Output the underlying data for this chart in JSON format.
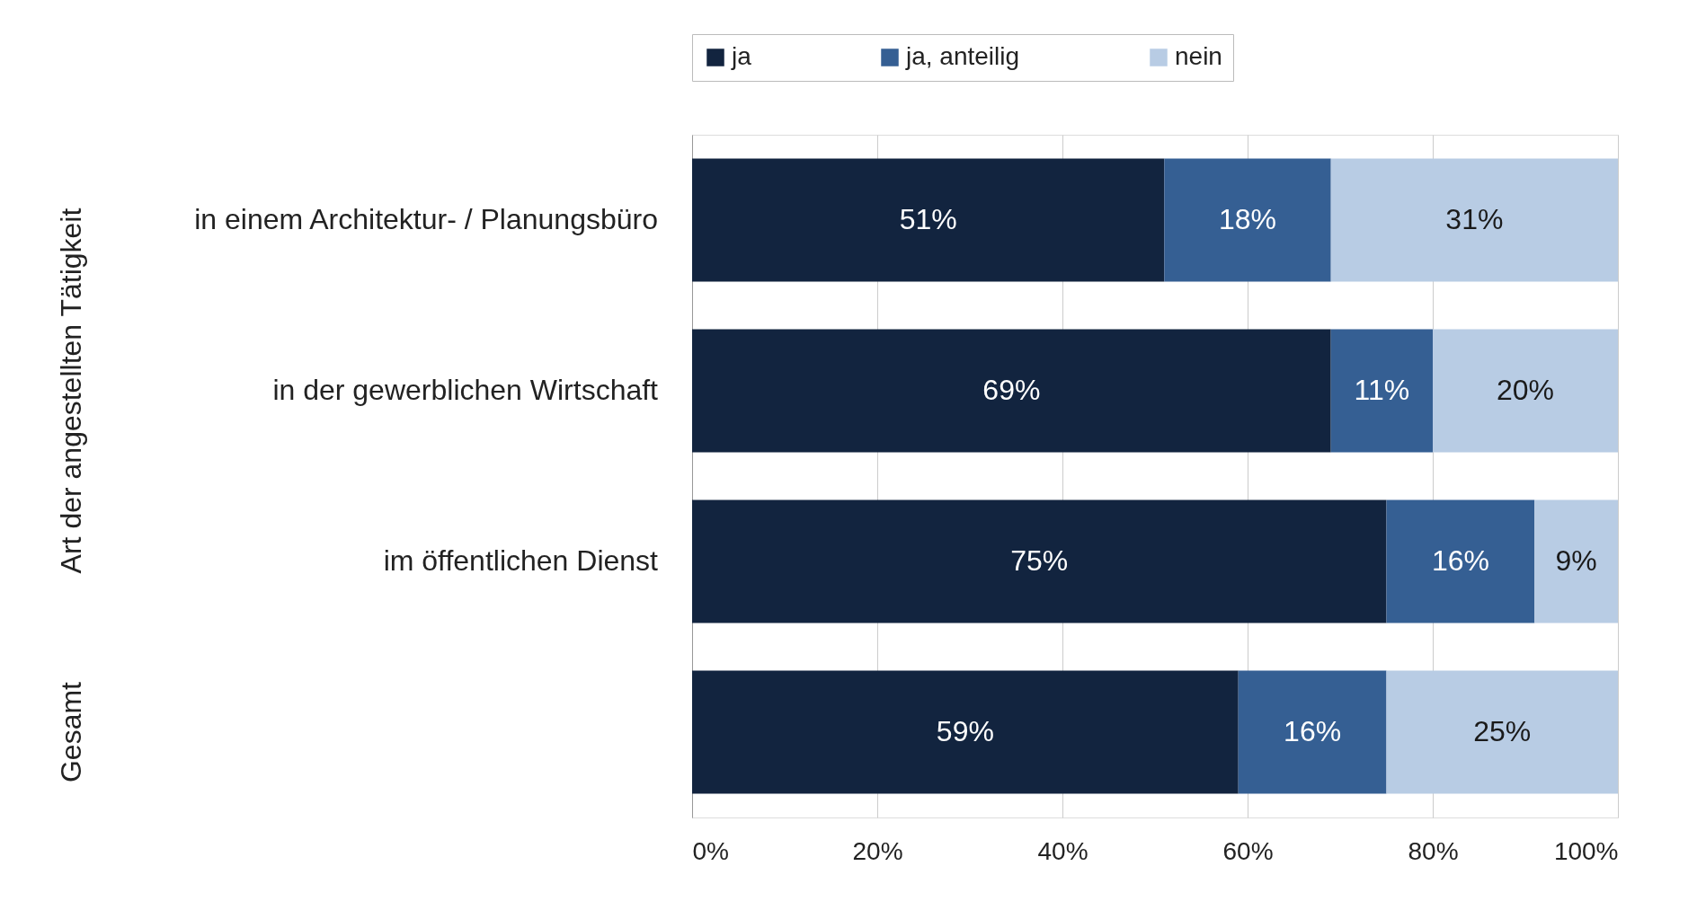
{
  "chart_data": {
    "type": "bar",
    "orientation": "horizontal",
    "stacked": true,
    "categories": [
      "in einem Architektur- / Planungsbüro",
      "in der gewerblichen Wirtschaft",
      "im öffentlichen Dienst",
      null
    ],
    "series": [
      {
        "name": "ja",
        "color": "#12243f",
        "values": [
          51,
          69,
          75,
          59
        ],
        "value_labels": [
          "51%",
          "69%",
          "75%",
          "59%"
        ]
      },
      {
        "name": "ja, anteilig",
        "color": "#355f93",
        "values": [
          18,
          11,
          16,
          16
        ],
        "value_labels": [
          "18%",
          "11%",
          "16%",
          "16%"
        ]
      },
      {
        "name": "nein",
        "color": "#b8cce4",
        "values": [
          31,
          20,
          9,
          25
        ],
        "value_labels": [
          "31%",
          "20%",
          "9%",
          "25%"
        ]
      }
    ],
    "xlim": [
      0,
      100
    ],
    "xticks": [
      {
        "value": 0,
        "label": "0%"
      },
      {
        "value": 20,
        "label": "20%"
      },
      {
        "value": 40,
        "label": "40%"
      },
      {
        "value": 60,
        "label": "60%"
      },
      {
        "value": 80,
        "label": "80%"
      },
      {
        "value": 100,
        "label": "100%"
      }
    ],
    "annotations": [
      "Art der angestellten Tätigkeit",
      "Gesamt"
    ],
    "grid": "x",
    "legend": "top"
  }
}
